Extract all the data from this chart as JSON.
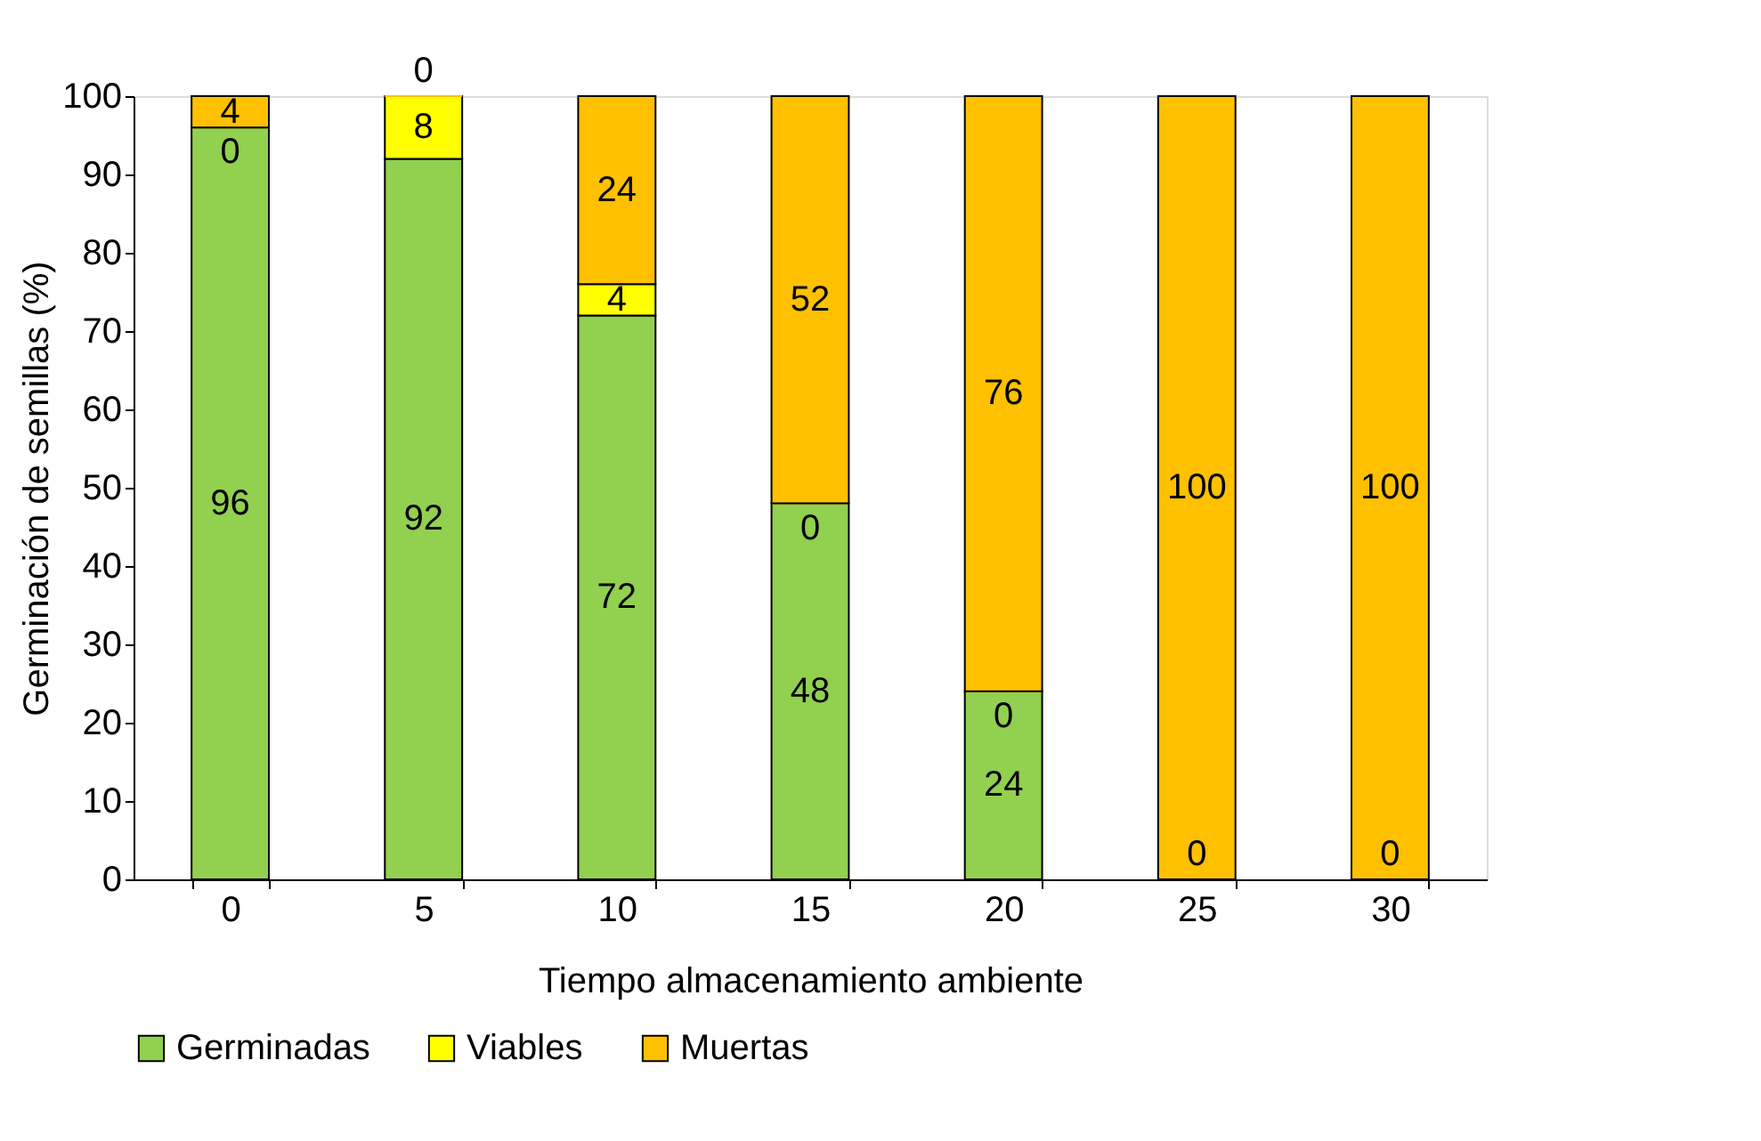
{
  "chart_data": {
    "type": "bar",
    "stacked": true,
    "xlabel": "Tiempo almacenamiento ambiente",
    "ylabel": "Germinación de semillas (%)",
    "categories": [
      "0",
      "5",
      "10",
      "15",
      "20",
      "25",
      "30"
    ],
    "series": [
      {
        "name": "Germinadas",
        "color": "#92d050",
        "values": [
          96,
          92,
          72,
          48,
          24,
          0,
          0
        ],
        "value_labels": [
          "96",
          "92",
          "72",
          "48",
          "24",
          "0",
          "0"
        ]
      },
      {
        "name": "Viables",
        "color": "#ffff00",
        "values": [
          0,
          8,
          4,
          0,
          0,
          0,
          0
        ],
        "value_labels": [
          "0",
          "8",
          "4",
          "0",
          "0",
          null,
          null
        ]
      },
      {
        "name": "Muertas",
        "color": "#ffc000",
        "values": [
          4,
          0,
          24,
          52,
          76,
          100,
          100
        ],
        "value_labels": [
          "4",
          "0",
          "24",
          "52",
          "76",
          "100",
          "100"
        ]
      }
    ],
    "ylim": [
      0,
      100
    ],
    "yticks": [
      0,
      10,
      20,
      30,
      40,
      50,
      60,
      70,
      80,
      90,
      100
    ],
    "grid": false,
    "legend": "bottom"
  }
}
